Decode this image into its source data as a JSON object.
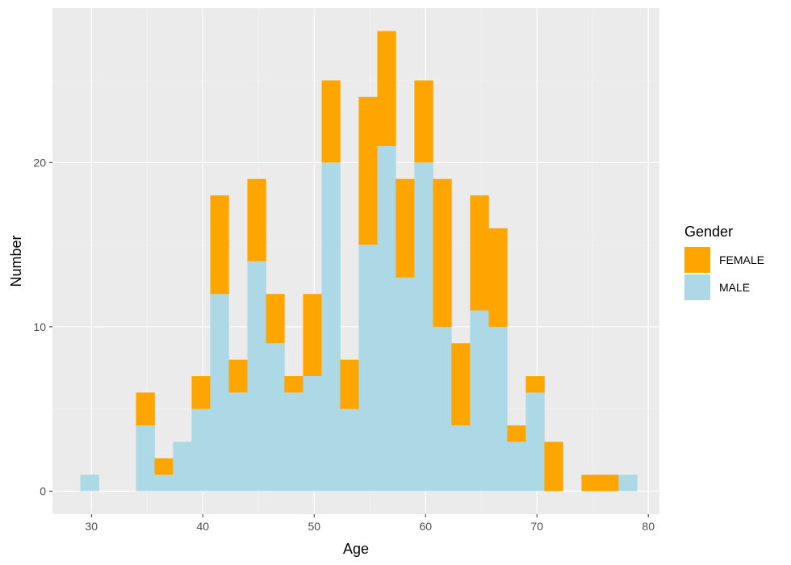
{
  "chart_data": {
    "type": "bar",
    "stacked": true,
    "xlabel": "Age",
    "ylabel": "Number",
    "xlim": [
      26.5,
      81
    ],
    "ylim": [
      -1.4,
      29.4
    ],
    "xticks": [
      30,
      40,
      50,
      60,
      70,
      80
    ],
    "yticks": [
      0,
      10,
      20
    ],
    "grid": true,
    "legend": {
      "title": "Gender",
      "position": "right"
    },
    "bin_edges": [
      29.0,
      30.67,
      32.33,
      34.0,
      35.67,
      37.33,
      39.0,
      40.67,
      42.33,
      44.0,
      45.67,
      47.33,
      49.0,
      50.67,
      52.33,
      54.0,
      55.67,
      57.33,
      59.0,
      60.67,
      62.33,
      64.0,
      65.67,
      67.33,
      69.0,
      70.67,
      72.33,
      74.0,
      75.67,
      77.33,
      79.0
    ],
    "series": [
      {
        "name": "MALE",
        "color": "#add8e6",
        "values": [
          1,
          0,
          0,
          4,
          1,
          3,
          5,
          12,
          6,
          14,
          9,
          6,
          7,
          20,
          5,
          15,
          21,
          13,
          20,
          10,
          4,
          11,
          10,
          3,
          6,
          0,
          0,
          0,
          0,
          1
        ]
      },
      {
        "name": "FEMALE",
        "color": "#ffa500",
        "values": [
          0,
          0,
          0,
          2,
          1,
          0,
          2,
          6,
          2,
          5,
          3,
          1,
          5,
          5,
          3,
          9,
          7,
          6,
          5,
          9,
          5,
          7,
          6,
          1,
          1,
          3,
          0,
          1,
          1,
          0
        ]
      }
    ],
    "legend_order": [
      "FEMALE",
      "MALE"
    ]
  },
  "colors": {
    "panel_background": "#ebebeb",
    "grid_major": "#ffffff",
    "grid_minor": "#f2f2f2"
  }
}
